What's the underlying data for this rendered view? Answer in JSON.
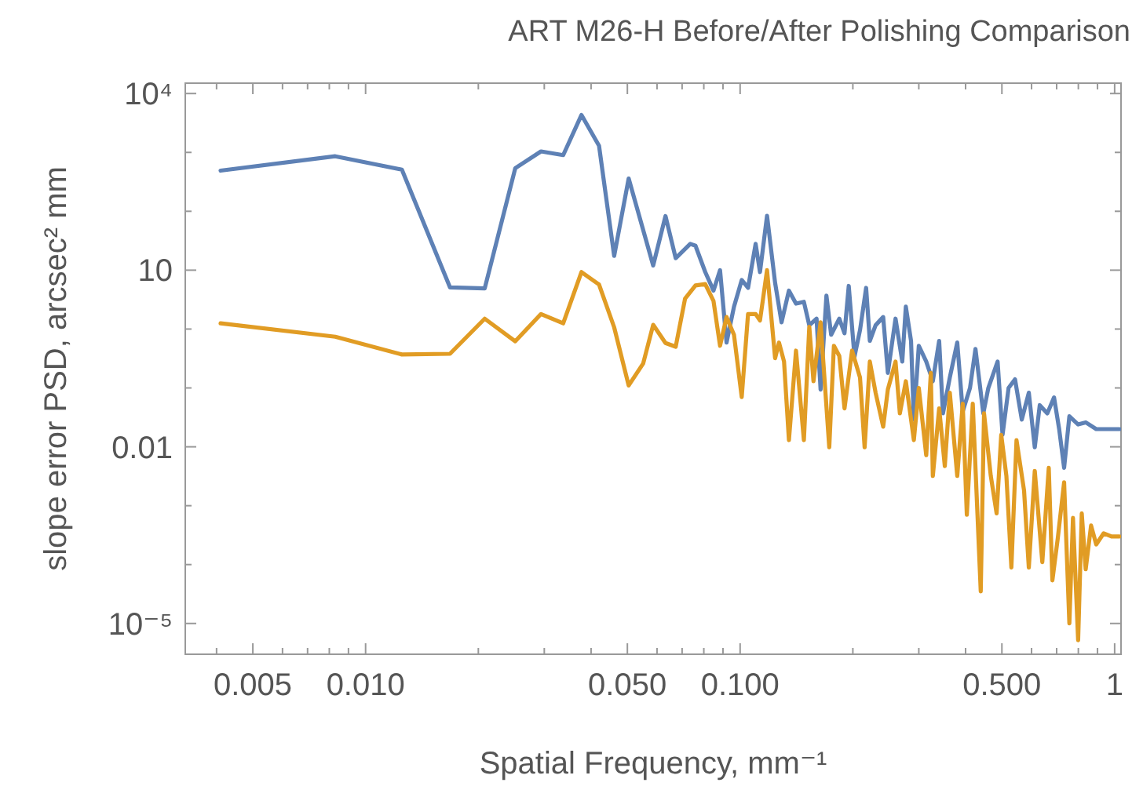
{
  "chart_data": {
    "type": "line",
    "title": "ART M26-H Before/After Polishing Comparison",
    "xlabel": "Spatial Frequency, mm⁻¹",
    "ylabel": "slope error PSD, arcsec² mm",
    "log": "xy",
    "grid": false,
    "legend": false,
    "line_style": "solid",
    "marker": "none",
    "xlim": [
      0.0033,
      1.04
    ],
    "ylim": [
      3e-06,
      15000
    ],
    "xticks": [
      {
        "value": 0.004,
        "label": null
      },
      {
        "value": 0.005,
        "label": "0.005"
      },
      {
        "value": 0.006,
        "label": null
      },
      {
        "value": 0.007,
        "label": null
      },
      {
        "value": 0.008,
        "label": null
      },
      {
        "value": 0.009,
        "label": null
      },
      {
        "value": 0.01,
        "label": "0.010"
      },
      {
        "value": 0.02,
        "label": null
      },
      {
        "value": 0.03,
        "label": null
      },
      {
        "value": 0.04,
        "label": null
      },
      {
        "value": 0.05,
        "label": "0.050"
      },
      {
        "value": 0.06,
        "label": null
      },
      {
        "value": 0.07,
        "label": null
      },
      {
        "value": 0.08,
        "label": null
      },
      {
        "value": 0.09,
        "label": null
      },
      {
        "value": 0.1,
        "label": "0.100"
      },
      {
        "value": 0.2,
        "label": null
      },
      {
        "value": 0.3,
        "label": null
      },
      {
        "value": 0.4,
        "label": null
      },
      {
        "value": 0.5,
        "label": "0.500"
      },
      {
        "value": 0.6,
        "label": null
      },
      {
        "value": 0.7,
        "label": null
      },
      {
        "value": 0.8,
        "label": null
      },
      {
        "value": 0.9,
        "label": null
      },
      {
        "value": 1,
        "label": "1"
      }
    ],
    "yticks": [
      {
        "value": 1e-05,
        "label": "10⁻⁵"
      },
      {
        "value": 0.0001,
        "label": null
      },
      {
        "value": 0.001,
        "label": null
      },
      {
        "value": 0.01,
        "label": "0.01"
      },
      {
        "value": 0.1,
        "label": null
      },
      {
        "value": 1,
        "label": null
      },
      {
        "value": 10,
        "label": "10"
      },
      {
        "value": 100,
        "label": null
      },
      {
        "value": 1000,
        "label": null
      },
      {
        "value": 10000,
        "label": "10⁴"
      }
    ],
    "series": [
      {
        "color": "#5e81b5",
        "x": [
          0.0041,
          0.0083,
          0.0125,
          0.0168,
          0.0208,
          0.0251,
          0.0294,
          0.0337,
          0.0377,
          0.042,
          0.0461,
          0.0504,
          0.0586,
          0.0632,
          0.0673,
          0.0736,
          0.076,
          0.0807,
          0.0849,
          0.0884,
          0.092,
          0.0963,
          0.101,
          0.105,
          0.11,
          0.113,
          0.118,
          0.124,
          0.129,
          0.135,
          0.141,
          0.148,
          0.153,
          0.16,
          0.164,
          0.17,
          0.175,
          0.184,
          0.19,
          0.195,
          0.202,
          0.209,
          0.217,
          0.222,
          0.23,
          0.241,
          0.248,
          0.26,
          0.271,
          0.277,
          0.286,
          0.291,
          0.3,
          0.314,
          0.327,
          0.34,
          0.348,
          0.363,
          0.38,
          0.393,
          0.411,
          0.425,
          0.446,
          0.46,
          0.487,
          0.502,
          0.521,
          0.542,
          0.565,
          0.59,
          0.612,
          0.631,
          0.661,
          0.689,
          0.711,
          0.733,
          0.757,
          0.799,
          0.837,
          0.893,
          0.981,
          1.03
        ],
        "values": [
          490,
          860,
          510,
          5.1,
          4.9,
          540,
          1040,
          900,
          4320,
          1300,
          17.5,
          360,
          12,
          83,
          16,
          28,
          26,
          9.3,
          4.5,
          10,
          0.59,
          2.4,
          6.8,
          5,
          28,
          9.3,
          84,
          6.1,
          1.3,
          4.5,
          2.7,
          2.9,
          1.16,
          1.5,
          0.094,
          3.7,
          0.8,
          1.5,
          0.85,
          5.4,
          0.34,
          0.96,
          5,
          0.63,
          1.16,
          1.6,
          0.18,
          1.5,
          0.28,
          2.4,
          0.63,
          0.029,
          0.52,
          0.28,
          0.13,
          0.63,
          0.037,
          0.15,
          0.59,
          0.04,
          0.1,
          0.46,
          0.037,
          0.1,
          0.28,
          0.016,
          0.1,
          0.14,
          0.029,
          0.083,
          0.0098,
          0.051,
          0.037,
          0.069,
          0.02,
          0.0044,
          0.033,
          0.024,
          0.026,
          0.02,
          0.02,
          0.02
        ]
      },
      {
        "color": "#e19c24",
        "x": [
          0.0041,
          0.0083,
          0.0125,
          0.0168,
          0.0208,
          0.0251,
          0.0294,
          0.0337,
          0.0377,
          0.042,
          0.0461,
          0.0504,
          0.0551,
          0.0586,
          0.0632,
          0.0673,
          0.0713,
          0.076,
          0.0807,
          0.0849,
          0.0884,
          0.092,
          0.0963,
          0.101,
          0.105,
          0.11,
          0.113,
          0.118,
          0.124,
          0.127,
          0.131,
          0.135,
          0.141,
          0.148,
          0.153,
          0.157,
          0.164,
          0.173,
          0.178,
          0.184,
          0.19,
          0.199,
          0.209,
          0.215,
          0.222,
          0.23,
          0.241,
          0.248,
          0.26,
          0.267,
          0.277,
          0.291,
          0.3,
          0.314,
          0.323,
          0.327,
          0.34,
          0.352,
          0.363,
          0.38,
          0.393,
          0.403,
          0.418,
          0.439,
          0.448,
          0.467,
          0.484,
          0.498,
          0.514,
          0.53,
          0.547,
          0.573,
          0.59,
          0.612,
          0.641,
          0.667,
          0.682,
          0.705,
          0.733,
          0.757,
          0.774,
          0.799,
          0.817,
          0.837,
          0.865,
          0.893,
          0.935,
          0.981,
          1.03
        ],
        "values": [
          1.25,
          0.74,
          0.37,
          0.38,
          1.5,
          0.62,
          1.8,
          1.25,
          9.3,
          5.7,
          1.07,
          0.11,
          0.26,
          1.18,
          0.58,
          0.5,
          3.3,
          5.5,
          5.8,
          3,
          0.52,
          1.6,
          0.8,
          0.07,
          1.8,
          1.8,
          1.4,
          10,
          0.32,
          0.59,
          0.28,
          0.013,
          0.43,
          0.013,
          1.09,
          0.13,
          1.3,
          0.0098,
          0.52,
          0.35,
          0.045,
          0.43,
          0.15,
          0.0098,
          0.28,
          0.083,
          0.022,
          0.094,
          0.28,
          0.037,
          0.13,
          0.013,
          0.1,
          0.0072,
          0.18,
          0.0032,
          0.045,
          0.0047,
          0.083,
          0.0032,
          0.054,
          0.0007,
          0.054,
          3.5e-05,
          0.037,
          0.0032,
          0.00074,
          0.016,
          0.0032,
          8.9e-05,
          0.013,
          0.0018,
          8.9e-05,
          0.0039,
          0.00011,
          0.0044,
          5.4e-05,
          0.00028,
          0.0025,
          1e-05,
          0.00062,
          5.2e-06,
          0.00074,
          8.3e-05,
          0.00046,
          0.00022,
          0.00034,
          0.0003,
          0.0003
        ]
      }
    ]
  }
}
